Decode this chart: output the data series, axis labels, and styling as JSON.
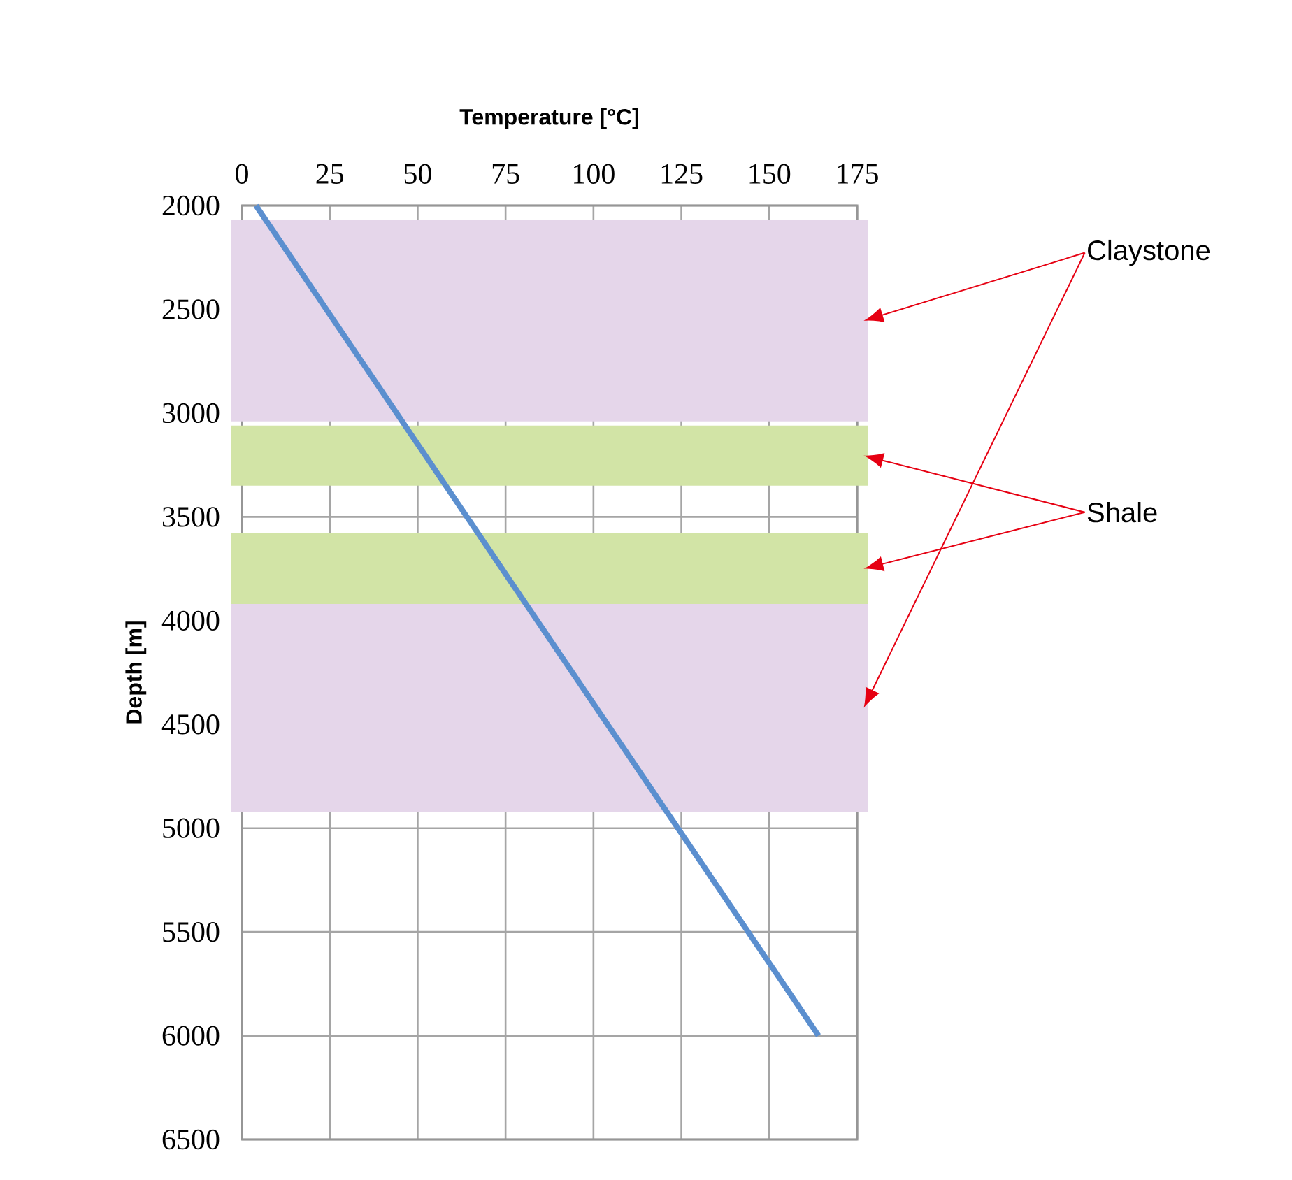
{
  "chart_data": {
    "type": "line",
    "xlabel": "Temperature [°C]",
    "ylabel": "Depth [m]",
    "series": [
      {
        "color": "#5b8fcf",
        "x": [
          4,
          164
        ],
        "values": [
          2000,
          6000
        ]
      }
    ],
    "xlim": [
      0,
      175
    ],
    "xticks": [
      0,
      25,
      50,
      75,
      100,
      125,
      150,
      175
    ],
    "ylim": [
      6500,
      2000
    ],
    "yticks": [
      2000,
      2500,
      3000,
      3500,
      4000,
      4500,
      5000,
      5500,
      6000,
      6500
    ],
    "grid": true,
    "marker": "none",
    "line_style": "solid",
    "bands": [
      {
        "axis": "y",
        "from": 2070,
        "to": 3040,
        "color": "#e5d6ea"
      },
      {
        "axis": "y",
        "from": 3060,
        "to": 3350,
        "color": "#d2e4a6"
      },
      {
        "axis": "y",
        "from": 3580,
        "to": 3920,
        "color": "#d2e4a6"
      },
      {
        "axis": "y",
        "from": 3920,
        "to": 4920,
        "color": "#e5d6ea"
      }
    ],
    "annotations": [
      "Claystone",
      "Shale"
    ]
  }
}
